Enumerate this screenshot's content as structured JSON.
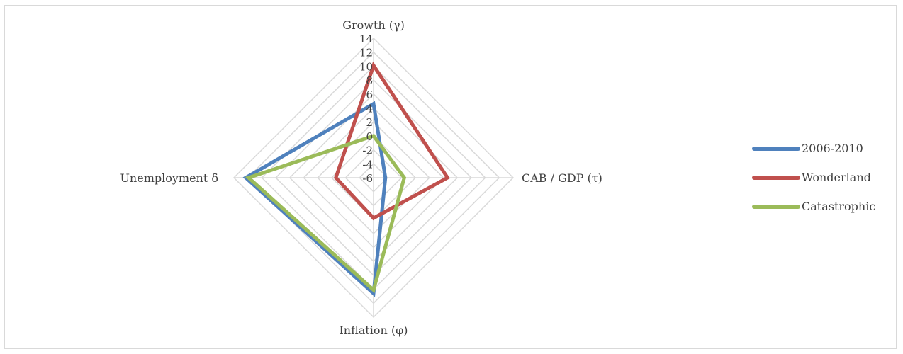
{
  "chart_data": {
    "type": "radar",
    "axes": [
      "Growth (γ)",
      "CAB / GDP (τ)",
      "Inflation (φ)",
      "Unemployment δ"
    ],
    "ticks": [
      "-6",
      "-4",
      "-2",
      "0",
      "2",
      "4",
      "6",
      "8",
      "10",
      "12",
      "14"
    ],
    "rmin": -6,
    "rmax": 14,
    "grid": true,
    "legend_position": "right",
    "series": [
      {
        "name": "2006-2010",
        "color": "#4f81bd",
        "values": [
          4.6,
          -4.3,
          10.6,
          12.3
        ]
      },
      {
        "name": "Wonderland",
        "color": "#c0504d",
        "values": [
          10.1,
          4.6,
          -0.2,
          -0.6
        ]
      },
      {
        "name": "Catastrophic",
        "color": "#9bbb59",
        "values": [
          0,
          -1.6,
          10.1,
          11.9
        ]
      }
    ]
  }
}
